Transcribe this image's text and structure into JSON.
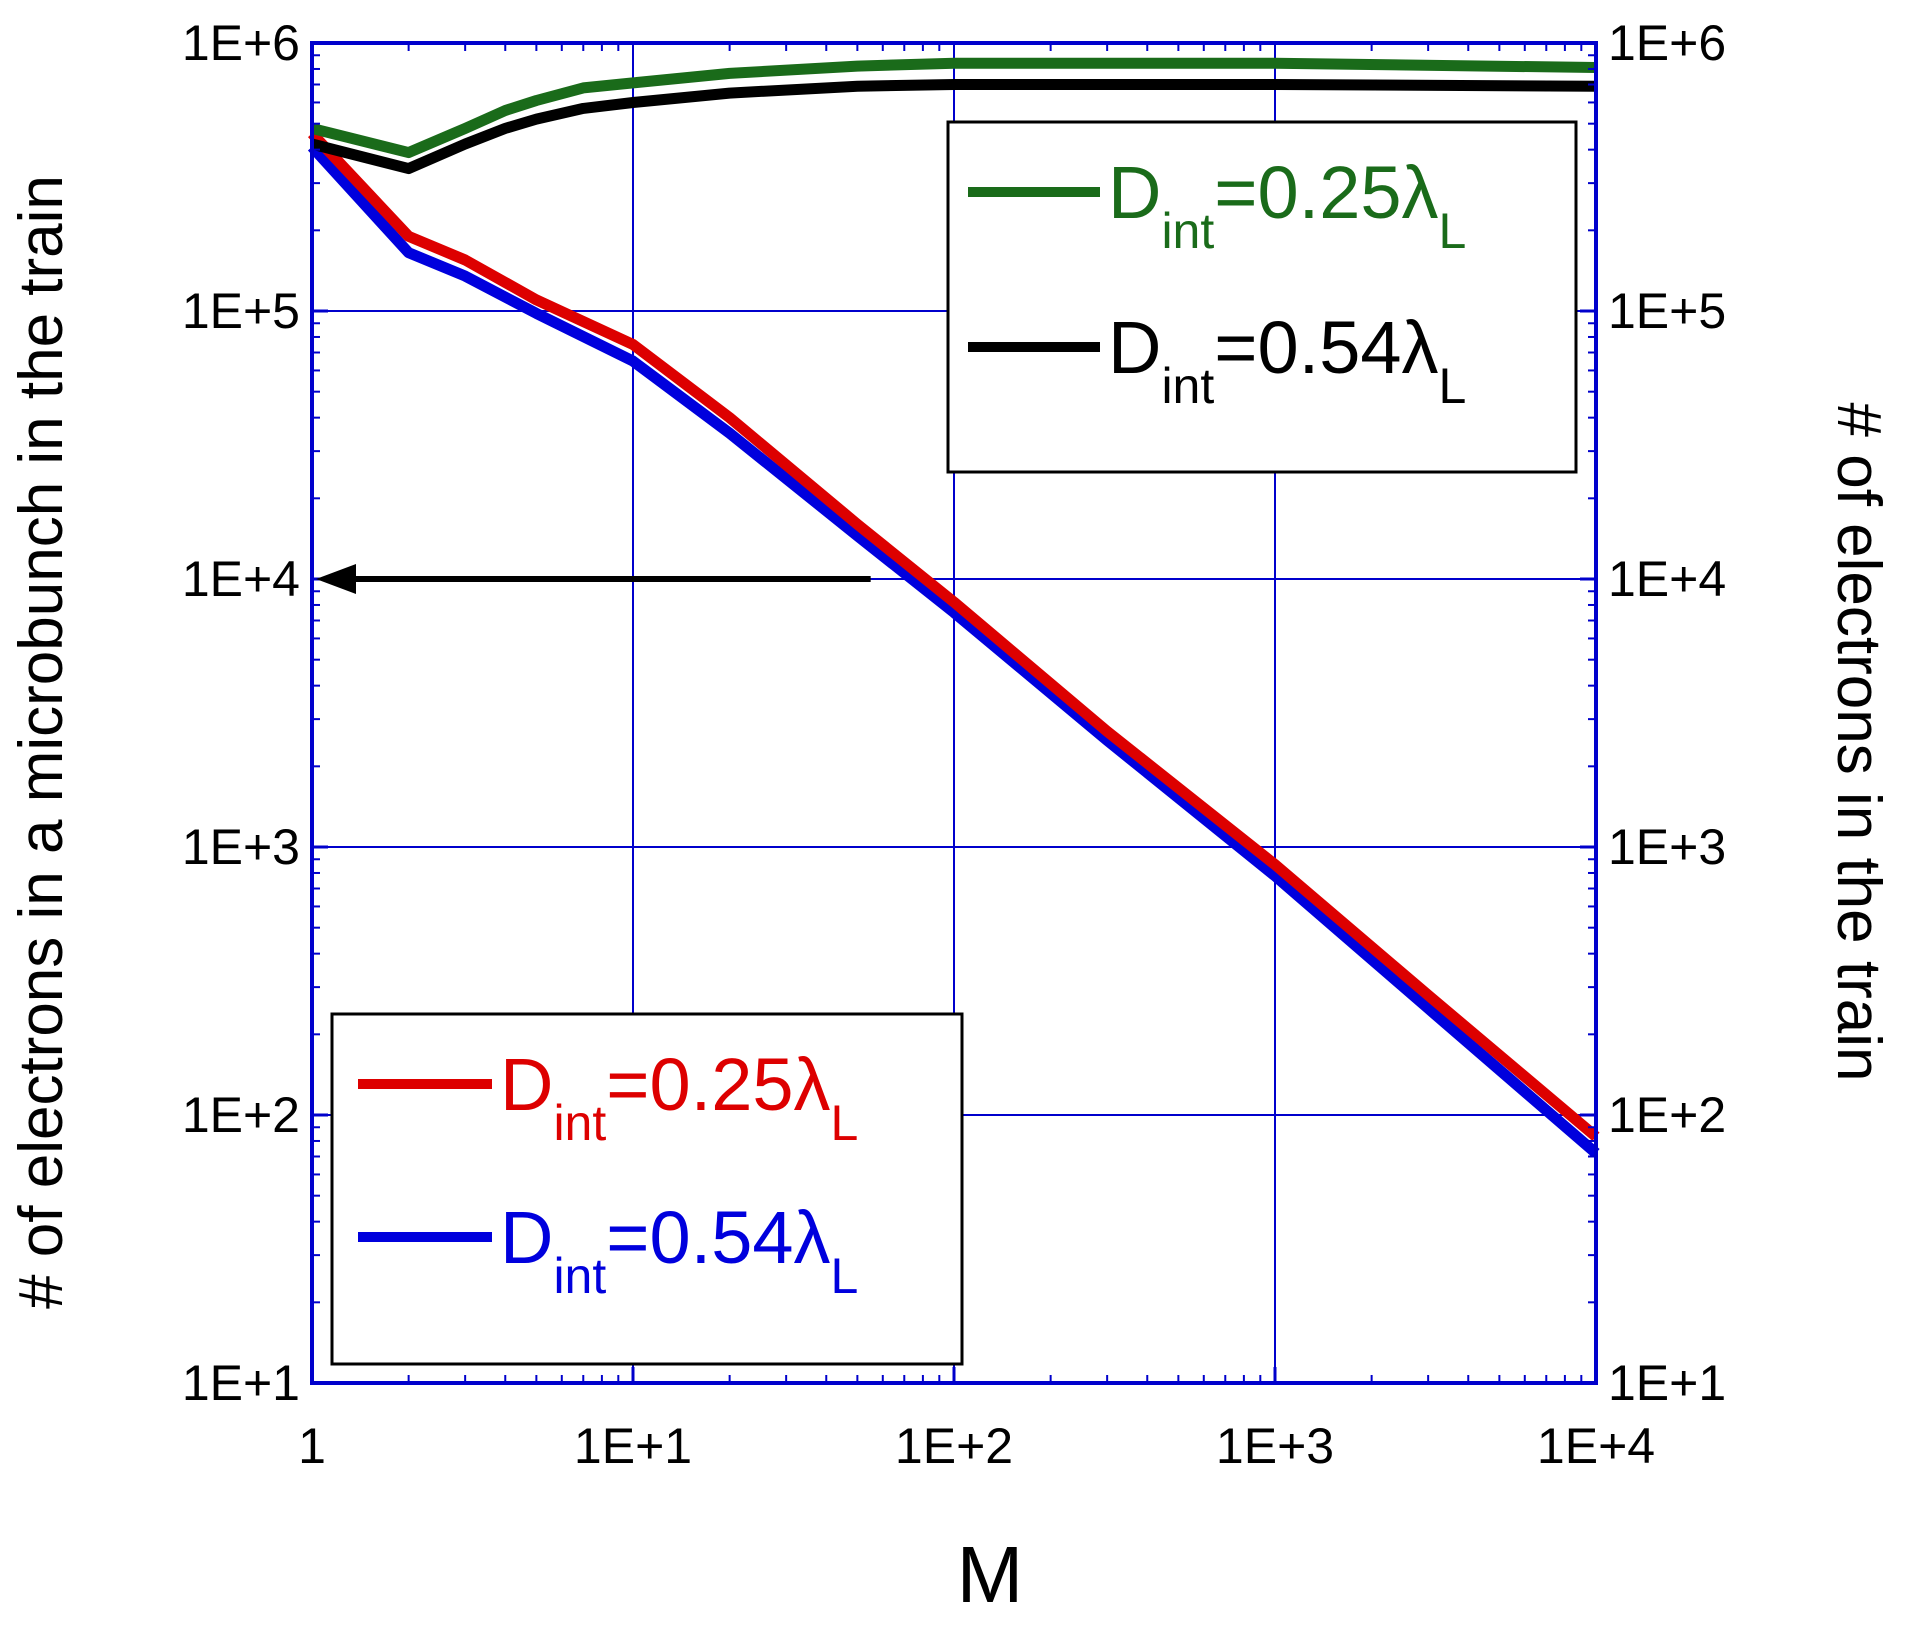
{
  "chart_data": {
    "type": "line",
    "xlabel": "M",
    "ylabel_left": "# of electrons in a microbunch in the train",
    "ylabel_right": "# of electrons in the train",
    "x_scale": "log",
    "y_scale": "log",
    "xlim": [
      1,
      10000
    ],
    "ylim": [
      10,
      1000000
    ],
    "x_ticks": [
      "1",
      "1E+1",
      "1E+2",
      "1E+3",
      "1E+4"
    ],
    "y_ticks_left": [
      "1E+1",
      "1E+2",
      "1E+3",
      "1E+4",
      "1E+5",
      "1E+6"
    ],
    "y_ticks_right": [
      "1E+1",
      "1E+2",
      "1E+3",
      "1E+4",
      "1E+5",
      "1E+6"
    ],
    "grid": true,
    "grid_color": "#0000cc",
    "annotation": {
      "type": "arrow",
      "direction": "left",
      "from": [
        55,
        10000
      ],
      "to": [
        1,
        10000
      ]
    },
    "series": [
      {
        "name": "D_int=0.25λ_L",
        "label": {
          "main": "D",
          "sub": "int",
          "value": "=0.25λ",
          "subscript": "L"
        },
        "axis": "right",
        "color": "#1a6b1a",
        "legend": "top-right",
        "x": [
          1,
          2,
          3,
          4,
          5,
          7,
          10,
          20,
          50,
          100,
          1000,
          10000
        ],
        "values": [
          480000,
          390000,
          480000,
          560000,
          610000,
          680000,
          710000,
          770000,
          820000,
          840000,
          840000,
          810000
        ]
      },
      {
        "name": "D_int=0.54λ_L",
        "label": {
          "main": "D",
          "sub": "int",
          "value": "=0.54λ",
          "subscript": "L"
        },
        "axis": "right",
        "color": "#000000",
        "legend": "top-right",
        "x": [
          1,
          2,
          3,
          4,
          5,
          7,
          10,
          20,
          50,
          100,
          1000,
          10000
        ],
        "values": [
          420000,
          340000,
          420000,
          480000,
          520000,
          570000,
          600000,
          650000,
          690000,
          700000,
          700000,
          690000
        ]
      },
      {
        "name": "D_int=0.25λ_L",
        "label": {
          "main": "D",
          "sub": "int",
          "value": "=0.25λ",
          "subscript": "L"
        },
        "axis": "left",
        "color": "#dd0000",
        "legend": "bottom-left",
        "x": [
          1,
          2,
          3,
          5,
          10,
          20,
          50,
          100,
          300,
          1000,
          3000,
          10000
        ],
        "values": [
          460000,
          190000,
          155000,
          110000,
          75000,
          40000,
          16000,
          8200,
          2700,
          860,
          280,
          83
        ]
      },
      {
        "name": "D_int=0.54λ_L",
        "label": {
          "main": "D",
          "sub": "int",
          "value": "=0.54λ",
          "subscript": "L"
        },
        "axis": "left",
        "color": "#0000dd",
        "legend": "bottom-left",
        "x": [
          1,
          2,
          3,
          5,
          10,
          20,
          50,
          100,
          300,
          1000,
          3000,
          10000
        ],
        "values": [
          410000,
          165000,
          135000,
          98000,
          65000,
          35000,
          14500,
          7500,
          2500,
          780,
          250,
          72
        ]
      }
    ]
  }
}
